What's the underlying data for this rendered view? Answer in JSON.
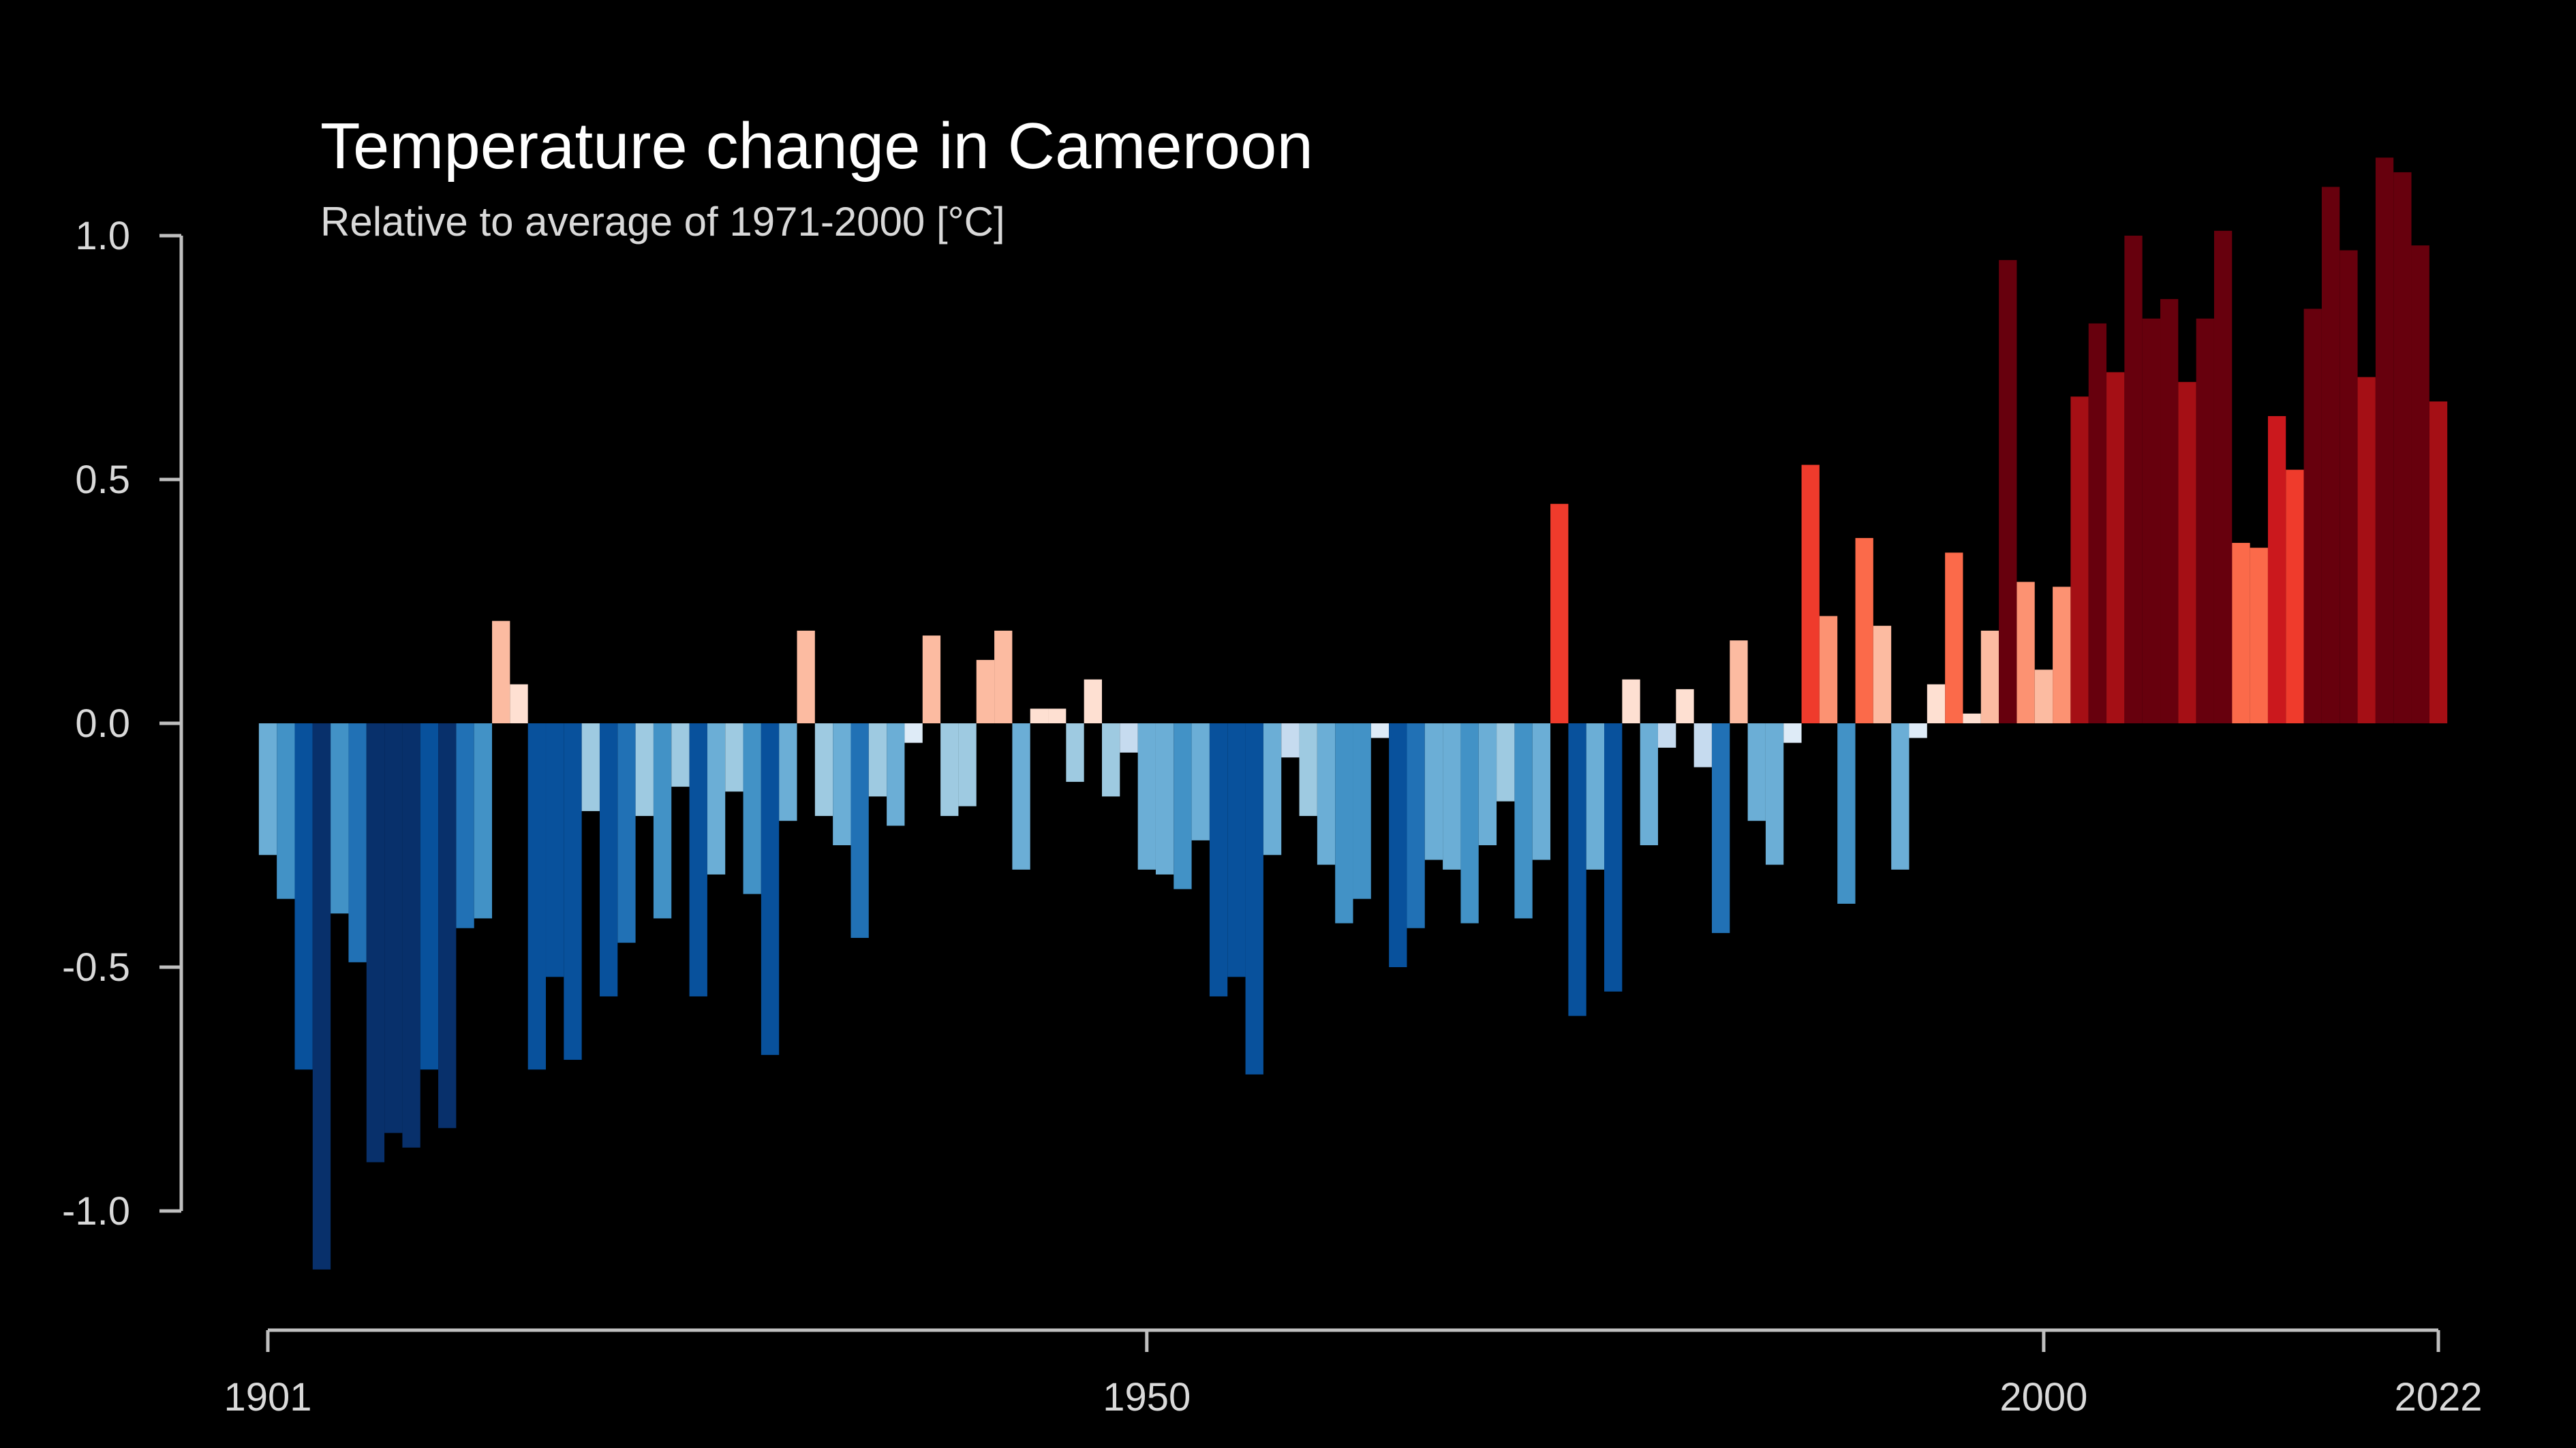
{
  "chart_data": {
    "type": "bar",
    "title": "Temperature change in Cameroon",
    "subtitle": "Relative to average of 1971-2000  [°C]",
    "xlabel": "",
    "ylabel": "",
    "xlim": [
      1901,
      2022
    ],
    "ylim": [
      -1.2,
      1.2
    ],
    "x_ticks": [
      1901,
      1950,
      2000,
      2022
    ],
    "y_ticks": [
      {
        "value": 1.0,
        "label": "1.0"
      },
      {
        "value": 0.5,
        "label": "0.5"
      },
      {
        "value": 0.0,
        "label": "0.0"
      },
      {
        "value": -0.5,
        "label": "-0.5"
      },
      {
        "value": -1.0,
        "label": "-1.0"
      }
    ],
    "grid": false,
    "legend": "none",
    "color_scale": {
      "blues": [
        "#08306b",
        "#08519c",
        "#2171b5",
        "#4292c6",
        "#6baed6",
        "#9ecae1",
        "#c6dbef",
        "#deebf7"
      ],
      "reds": [
        "#fee0d2",
        "#fcbba1",
        "#fc9272",
        "#fb6a4a",
        "#ef3b2c",
        "#cb181d",
        "#a50f15",
        "#67000d"
      ]
    },
    "x": [
      1901,
      1902,
      1903,
      1904,
      1905,
      1906,
      1907,
      1908,
      1909,
      1910,
      1911,
      1912,
      1913,
      1914,
      1915,
      1916,
      1917,
      1918,
      1919,
      1920,
      1921,
      1922,
      1923,
      1924,
      1925,
      1926,
      1927,
      1928,
      1929,
      1930,
      1931,
      1932,
      1933,
      1934,
      1935,
      1936,
      1937,
      1938,
      1939,
      1940,
      1941,
      1942,
      1943,
      1944,
      1945,
      1946,
      1947,
      1948,
      1949,
      1950,
      1951,
      1952,
      1953,
      1954,
      1955,
      1956,
      1957,
      1958,
      1959,
      1960,
      1961,
      1962,
      1963,
      1964,
      1965,
      1966,
      1967,
      1968,
      1969,
      1970,
      1971,
      1972,
      1973,
      1974,
      1975,
      1976,
      1977,
      1978,
      1979,
      1980,
      1981,
      1982,
      1983,
      1984,
      1985,
      1986,
      1987,
      1988,
      1989,
      1990,
      1991,
      1992,
      1993,
      1994,
      1995,
      1996,
      1997,
      1998,
      1999,
      2000,
      2001,
      2002,
      2003,
      2004,
      2005,
      2006,
      2007,
      2008,
      2009,
      2010,
      2011,
      2012,
      2013,
      2014,
      2015,
      2016,
      2017,
      2018,
      2019,
      2020,
      2021,
      2022
    ],
    "values": [
      -0.27,
      -0.36,
      -0.71,
      -1.12,
      -0.39,
      -0.49,
      -0.9,
      -0.84,
      -0.87,
      -0.71,
      -0.83,
      -0.42,
      -0.4,
      0.21,
      0.08,
      -0.71,
      -0.52,
      -0.69,
      -0.18,
      -0.56,
      -0.45,
      -0.19,
      -0.4,
      -0.13,
      -0.56,
      -0.31,
      -0.14,
      -0.35,
      -0.68,
      -0.2,
      0.19,
      -0.19,
      -0.25,
      -0.44,
      -0.15,
      -0.21,
      -0.04,
      0.18,
      -0.19,
      -0.17,
      0.13,
      0.19,
      -0.3,
      0.03,
      0.03,
      -0.12,
      0.09,
      -0.15,
      -0.06,
      -0.3,
      -0.31,
      -0.34,
      -0.24,
      -0.56,
      -0.52,
      -0.72,
      -0.27,
      -0.07,
      -0.19,
      -0.29,
      -0.41,
      -0.36,
      -0.03,
      -0.5,
      -0.42,
      -0.28,
      -0.3,
      -0.41,
      -0.25,
      -0.16,
      -0.4,
      -0.28,
      0.45,
      -0.6,
      -0.3,
      -0.55,
      0.09,
      -0.25,
      -0.05,
      0.07,
      -0.09,
      -0.43,
      0.17,
      -0.2,
      -0.29,
      -0.04,
      0.53,
      0.22,
      -0.37,
      0.38,
      0.2,
      -0.3,
      -0.03,
      0.08,
      0.35,
      0.02,
      0.19,
      0.95,
      0.29,
      0.11,
      0.28,
      0.67,
      0.82,
      0.72,
      1.0,
      0.83,
      0.87,
      0.7,
      0.83,
      1.01,
      0.37,
      0.36,
      0.63,
      0.52,
      0.85,
      1.1,
      0.97,
      0.71,
      1.16,
      1.13,
      0.98,
      0.66
    ]
  }
}
